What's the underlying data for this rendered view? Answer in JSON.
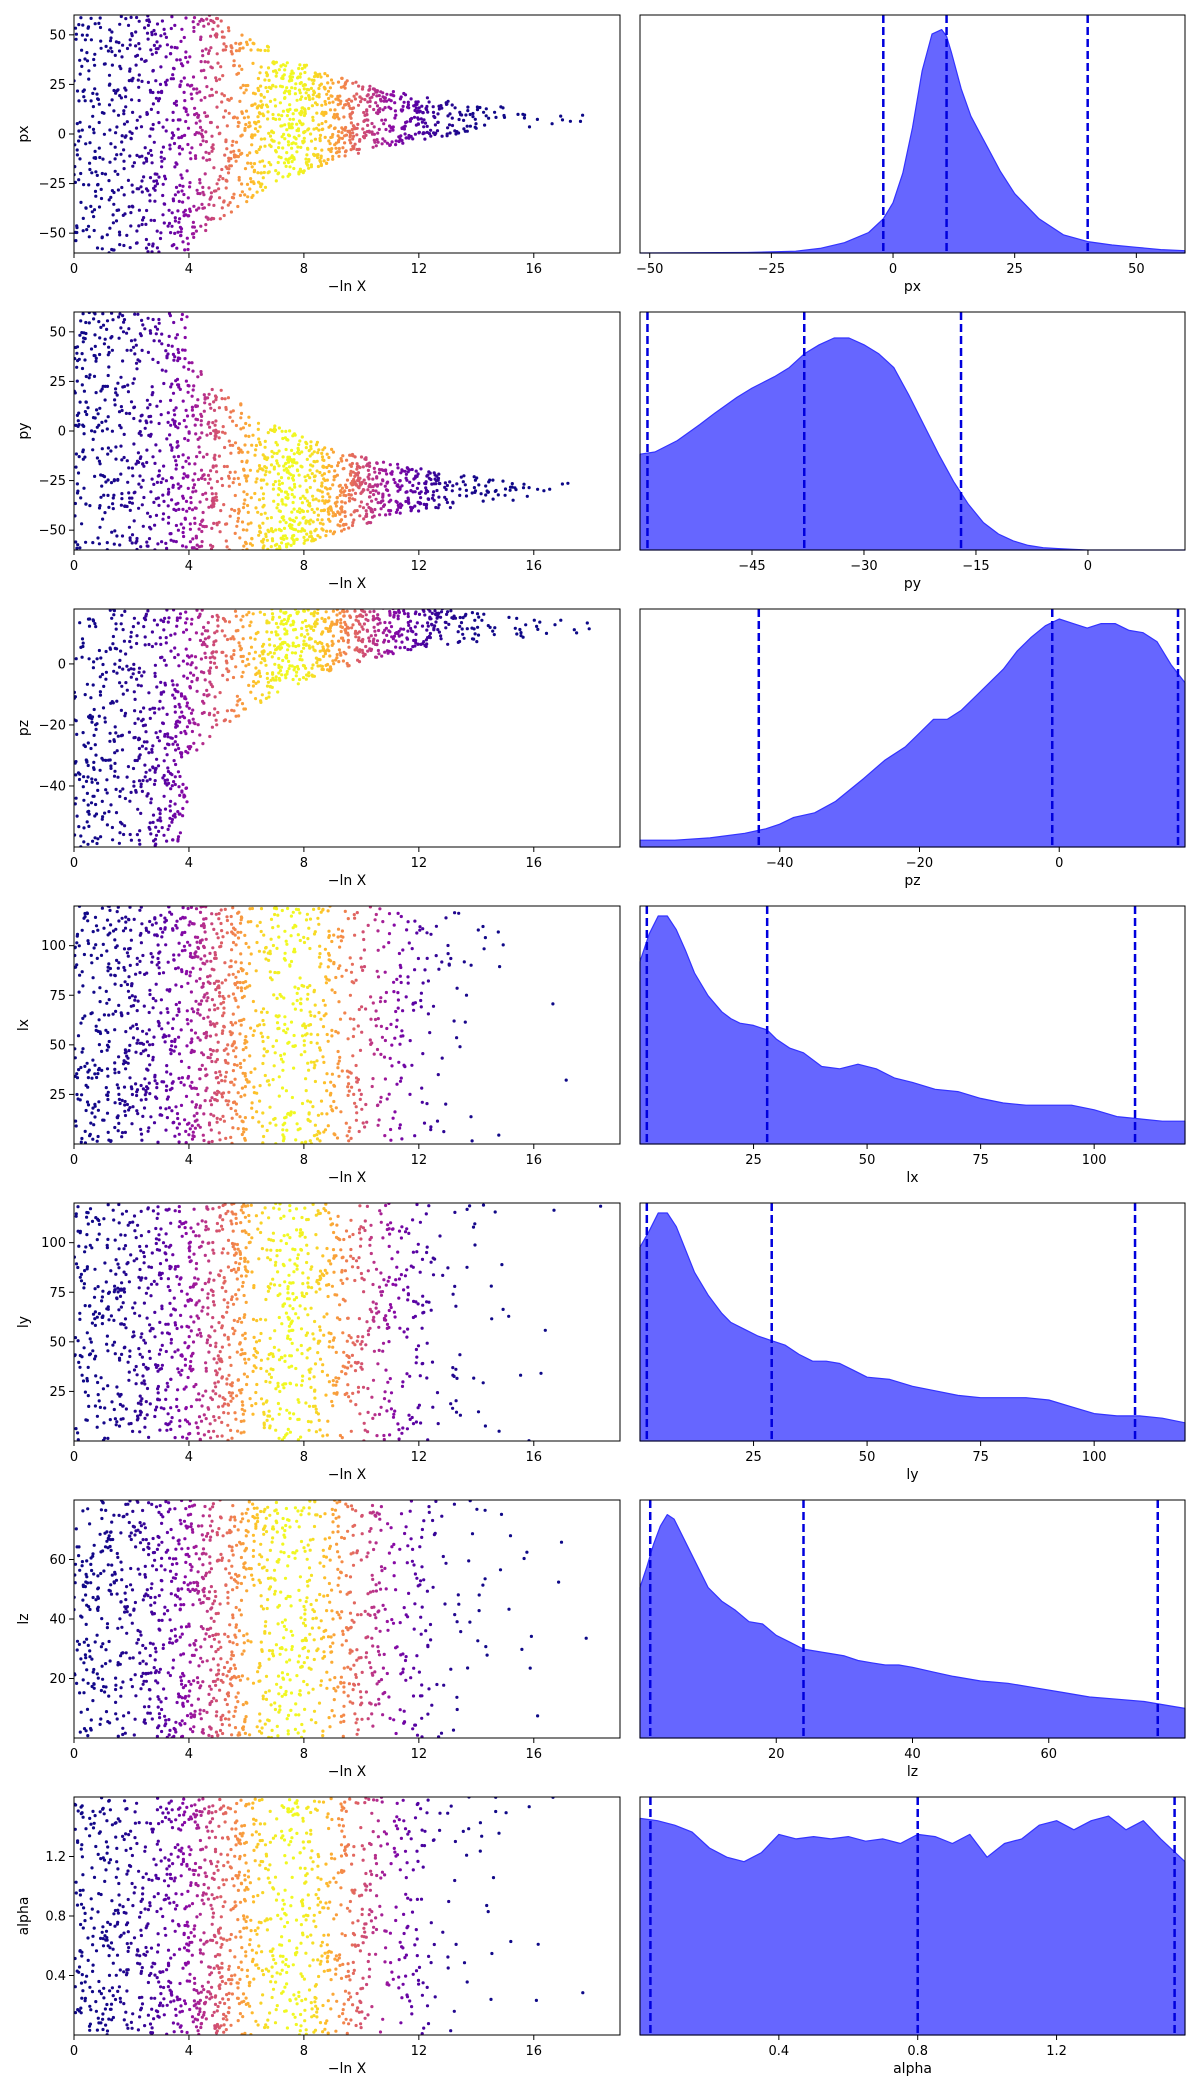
{
  "colors": {
    "trace_colormap": "plasma",
    "posterior_fill": "#6666ff",
    "posterior_edge": "#3333ff",
    "quantile_line": "#0000dd",
    "axes": "#000000"
  },
  "chart_data": [
    {
      "type": "scatter",
      "param": "px",
      "xlabel": "−ln X",
      "ylabel": "px",
      "xlim": [
        0,
        19
      ],
      "ylim": [
        -60,
        60
      ],
      "x_ticks": [
        0,
        4,
        8,
        12,
        16
      ],
      "y_ticks": [
        -50,
        -25,
        0,
        25,
        50
      ],
      "trace": {
        "center": 8,
        "peak_x": 7.5,
        "converge_x": 4,
        "tail_x": 18.5,
        "point_count": 1600
      }
    },
    {
      "type": "area",
      "param": "px",
      "xlabel": "px",
      "xlim": [
        -52,
        60
      ],
      "x_ticks": [
        -50,
        -25,
        0,
        25,
        50
      ],
      "quantiles": [
        -2,
        11,
        40
      ],
      "density": {
        "x": [
          -52,
          -30,
          -20,
          -15,
          -10,
          -5,
          -2,
          0,
          2,
          4,
          6,
          8,
          10,
          11,
          12,
          14,
          16,
          18,
          20,
          22,
          25,
          30,
          35,
          40,
          45,
          50,
          55,
          60
        ],
        "y": [
          0.0,
          0.002,
          0.008,
          0.02,
          0.045,
          0.09,
          0.15,
          0.22,
          0.35,
          0.55,
          0.8,
          0.96,
          0.98,
          0.95,
          0.88,
          0.72,
          0.6,
          0.52,
          0.44,
          0.36,
          0.26,
          0.15,
          0.08,
          0.05,
          0.035,
          0.025,
          0.015,
          0.01
        ]
      }
    },
    {
      "type": "scatter",
      "param": "py",
      "xlabel": "−ln X",
      "ylabel": "py",
      "xlim": [
        0,
        19
      ],
      "ylim": [
        -60,
        60
      ],
      "x_ticks": [
        0,
        4,
        8,
        12,
        16
      ],
      "y_ticks": [
        -50,
        -25,
        0,
        25,
        50
      ],
      "trace": {
        "center": -30,
        "peak_x": 7.5,
        "converge_x": 4,
        "tail_x": 18.5,
        "point_count": 1600
      }
    },
    {
      "type": "area",
      "param": "py",
      "xlabel": "py",
      "xlim": [
        -60,
        13
      ],
      "x_ticks": [
        -45,
        -30,
        -15,
        0
      ],
      "quantiles": [
        -59,
        -38,
        -17
      ],
      "density": {
        "x": [
          -60,
          -58,
          -55,
          -52,
          -50,
          -47,
          -45,
          -42,
          -40,
          -38,
          -36,
          -34,
          -32,
          -30,
          -28,
          -26,
          -24,
          -22,
          -20,
          -18,
          -16,
          -14,
          -12,
          -10,
          -8,
          -6,
          -4,
          -2,
          0,
          13
        ],
        "y": [
          0.42,
          0.43,
          0.48,
          0.55,
          0.6,
          0.67,
          0.71,
          0.76,
          0.8,
          0.86,
          0.9,
          0.93,
          0.93,
          0.9,
          0.86,
          0.8,
          0.68,
          0.55,
          0.42,
          0.3,
          0.2,
          0.12,
          0.07,
          0.04,
          0.02,
          0.01,
          0.006,
          0.003,
          0.0,
          0.0
        ]
      }
    },
    {
      "type": "scatter",
      "param": "pz",
      "xlabel": "−ln X",
      "ylabel": "pz",
      "xlim": [
        0,
        19
      ],
      "ylim": [
        -60,
        18
      ],
      "x_ticks": [
        0,
        4,
        8,
        12,
        16
      ],
      "y_ticks": [
        -40,
        -20,
        0
      ],
      "trace": {
        "center": 12,
        "peak_x": 7.5,
        "converge_x": 4,
        "tail_x": 18.5,
        "point_count": 1600
      }
    },
    {
      "type": "area",
      "param": "pz",
      "xlabel": "pz",
      "xlim": [
        -60,
        18
      ],
      "x_ticks": [
        -40,
        -20,
        0
      ],
      "quantiles": [
        -43,
        -1,
        17
      ],
      "density": {
        "x": [
          -60,
          -55,
          -50,
          -45,
          -42,
          -40,
          -38,
          -35,
          -32,
          -28,
          -25,
          -22,
          -20,
          -18,
          -16,
          -14,
          -12,
          -10,
          -8,
          -6,
          -4,
          -2,
          0,
          2,
          4,
          6,
          8,
          10,
          12,
          14,
          16,
          18
        ],
        "y": [
          0.03,
          0.03,
          0.04,
          0.06,
          0.08,
          0.1,
          0.13,
          0.15,
          0.2,
          0.3,
          0.38,
          0.44,
          0.5,
          0.56,
          0.56,
          0.6,
          0.66,
          0.72,
          0.78,
          0.86,
          0.92,
          0.97,
          1.0,
          0.98,
          0.96,
          0.98,
          0.98,
          0.95,
          0.94,
          0.9,
          0.8,
          0.72
        ]
      }
    },
    {
      "type": "scatter",
      "param": "lx",
      "xlabel": "−ln X",
      "ylabel": "lx",
      "xlim": [
        0,
        19
      ],
      "ylim": [
        0,
        120
      ],
      "x_ticks": [
        0,
        4,
        8,
        12,
        16
      ],
      "y_ticks": [
        25,
        50,
        75,
        100
      ],
      "trace": {
        "center": null,
        "peak_x": 7.5,
        "tail_x": 18.5,
        "point_count": 1500
      }
    },
    {
      "type": "area",
      "param": "lx",
      "xlabel": "lx",
      "xlim": [
        0,
        120
      ],
      "x_ticks": [
        25,
        50,
        75,
        100
      ],
      "quantiles": [
        1.5,
        28,
        109
      ],
      "density": {
        "x": [
          0,
          2,
          4,
          6,
          8,
          10,
          12,
          15,
          18,
          20,
          22,
          25,
          28,
          30,
          33,
          36,
          40,
          44,
          48,
          52,
          56,
          60,
          65,
          70,
          75,
          80,
          85,
          90,
          95,
          100,
          105,
          110,
          115,
          120
        ],
        "y": [
          0.8,
          0.92,
          1.0,
          1.0,
          0.94,
          0.85,
          0.75,
          0.65,
          0.58,
          0.55,
          0.53,
          0.52,
          0.5,
          0.46,
          0.42,
          0.4,
          0.34,
          0.33,
          0.35,
          0.33,
          0.29,
          0.27,
          0.24,
          0.23,
          0.2,
          0.18,
          0.17,
          0.17,
          0.17,
          0.15,
          0.12,
          0.11,
          0.1,
          0.1
        ]
      }
    },
    {
      "type": "scatter",
      "param": "ly",
      "xlabel": "−ln X",
      "ylabel": "ly",
      "xlim": [
        0,
        19
      ],
      "ylim": [
        0,
        120
      ],
      "x_ticks": [
        0,
        4,
        8,
        12,
        16
      ],
      "y_ticks": [
        25,
        50,
        75,
        100
      ],
      "trace": {
        "center": null,
        "peak_x": 7.5,
        "tail_x": 18.5,
        "point_count": 1500
      }
    },
    {
      "type": "area",
      "param": "ly",
      "xlabel": "ly",
      "xlim": [
        0,
        120
      ],
      "x_ticks": [
        25,
        50,
        75,
        100
      ],
      "quantiles": [
        1.5,
        29,
        109
      ],
      "density": {
        "x": [
          0,
          2,
          4,
          6,
          8,
          10,
          12,
          15,
          18,
          20,
          23,
          26,
          29,
          32,
          35,
          38,
          41,
          44,
          47,
          50,
          55,
          60,
          65,
          70,
          75,
          80,
          85,
          90,
          95,
          100,
          105,
          110,
          115,
          120
        ],
        "y": [
          0.85,
          0.92,
          1.0,
          1.0,
          0.94,
          0.84,
          0.74,
          0.64,
          0.56,
          0.52,
          0.49,
          0.46,
          0.44,
          0.42,
          0.38,
          0.35,
          0.35,
          0.34,
          0.31,
          0.28,
          0.27,
          0.24,
          0.22,
          0.2,
          0.19,
          0.19,
          0.19,
          0.18,
          0.15,
          0.12,
          0.11,
          0.11,
          0.1,
          0.08
        ]
      }
    },
    {
      "type": "scatter",
      "param": "lz",
      "xlabel": "−ln X",
      "ylabel": "lz",
      "xlim": [
        0,
        19
      ],
      "ylim": [
        0,
        80
      ],
      "x_ticks": [
        0,
        4,
        8,
        12,
        16
      ],
      "y_ticks": [
        20,
        40,
        60
      ],
      "trace": {
        "center": null,
        "peak_x": 7.5,
        "tail_x": 18.5,
        "point_count": 1500
      }
    },
    {
      "type": "area",
      "param": "lz",
      "xlabel": "lz",
      "xlim": [
        0,
        80
      ],
      "x_ticks": [
        20,
        40,
        60
      ],
      "quantiles": [
        1.5,
        24,
        76
      ],
      "density": {
        "x": [
          0,
          1,
          2,
          3,
          4,
          5,
          6,
          8,
          10,
          12,
          14,
          16,
          18,
          20,
          22,
          24,
          26,
          28,
          30,
          32,
          34,
          36,
          38,
          40,
          43,
          46,
          50,
          54,
          58,
          62,
          66,
          70,
          74,
          78,
          80
        ],
        "y": [
          0.66,
          0.75,
          0.85,
          0.93,
          0.98,
          0.96,
          0.9,
          0.78,
          0.66,
          0.6,
          0.56,
          0.51,
          0.5,
          0.45,
          0.42,
          0.39,
          0.38,
          0.37,
          0.36,
          0.34,
          0.33,
          0.32,
          0.32,
          0.31,
          0.29,
          0.27,
          0.25,
          0.24,
          0.22,
          0.2,
          0.18,
          0.17,
          0.16,
          0.14,
          0.13
        ]
      }
    },
    {
      "type": "scatter",
      "param": "alpha",
      "xlabel": "−ln X",
      "ylabel": "alpha",
      "xlim": [
        0,
        19
      ],
      "ylim": [
        0,
        1.6
      ],
      "x_ticks": [
        0,
        4,
        8,
        12,
        16
      ],
      "y_ticks": [
        0.4,
        0.8,
        1.2
      ],
      "trace": {
        "center": null,
        "peak_x": 7.5,
        "tail_x": 18.5,
        "point_count": 1500
      }
    },
    {
      "type": "area",
      "param": "alpha",
      "xlabel": "alpha",
      "xlim": [
        0,
        1.57
      ],
      "x_ticks": [
        0.4,
        0.8,
        1.2
      ],
      "quantiles": [
        0.03,
        0.8,
        1.54
      ],
      "density": {
        "x": [
          0.0,
          0.05,
          0.1,
          0.15,
          0.2,
          0.25,
          0.3,
          0.35,
          0.4,
          0.45,
          0.5,
          0.55,
          0.6,
          0.65,
          0.7,
          0.75,
          0.8,
          0.85,
          0.9,
          0.95,
          1.0,
          1.05,
          1.1,
          1.15,
          1.2,
          1.25,
          1.3,
          1.35,
          1.4,
          1.45,
          1.5,
          1.57
        ],
        "y": [
          0.95,
          0.94,
          0.92,
          0.89,
          0.82,
          0.78,
          0.76,
          0.8,
          0.88,
          0.86,
          0.87,
          0.86,
          0.87,
          0.85,
          0.86,
          0.84,
          0.88,
          0.87,
          0.84,
          0.88,
          0.78,
          0.84,
          0.86,
          0.92,
          0.94,
          0.9,
          0.94,
          0.96,
          0.9,
          0.94,
          0.86,
          0.76
        ]
      }
    }
  ]
}
